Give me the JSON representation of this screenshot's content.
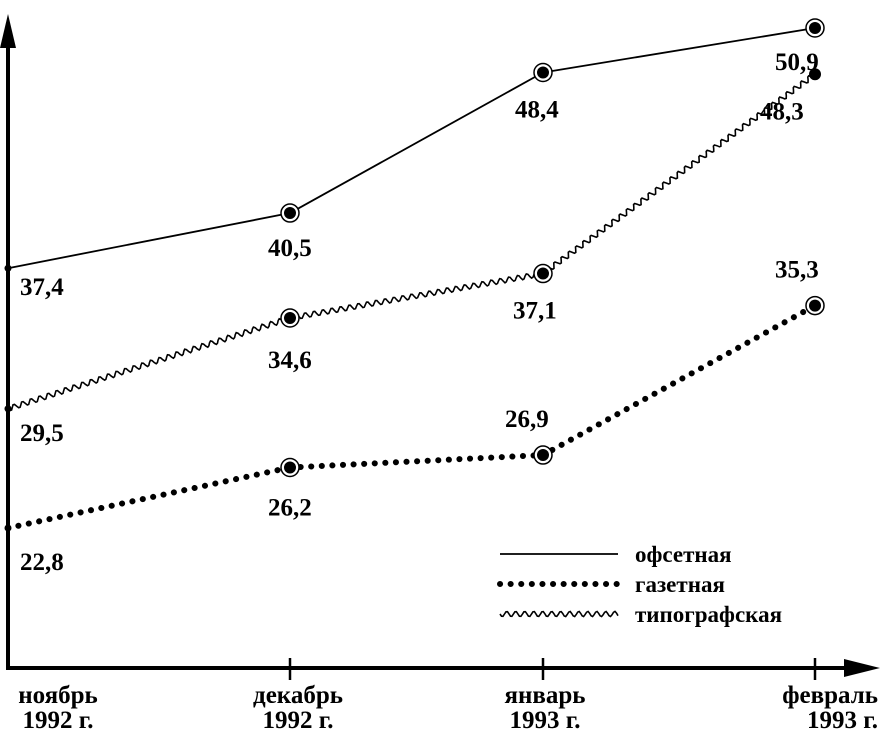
{
  "chart_data": {
    "type": "line",
    "title": "",
    "xlabel": "",
    "ylabel": "",
    "categories": [
      [
        "ноябрь",
        "1992 г."
      ],
      [
        "декабрь",
        "1992 г."
      ],
      [
        "январь",
        "1993 г."
      ],
      [
        "февраль",
        "1993 г."
      ]
    ],
    "series": [
      {
        "name": "офсетная",
        "style": "solid",
        "values": [
          37.4,
          40.5,
          48.4,
          50.9
        ],
        "labels": [
          "37,4",
          "40,5",
          "48,4",
          "50,9"
        ]
      },
      {
        "name": "газетная",
        "style": "dotted",
        "values": [
          22.8,
          26.2,
          26.9,
          35.3
        ],
        "labels": [
          "22,8",
          "26,2",
          "26,9",
          "35,3"
        ]
      },
      {
        "name": "типографская",
        "style": "wavy",
        "values": [
          29.5,
          34.6,
          37.1,
          48.3
        ],
        "labels": [
          "29,5",
          "34,6",
          "37,1",
          "48,3"
        ]
      }
    ],
    "ylim": [
      12,
      53
    ],
    "grid": false,
    "legend_position": "bottom-right",
    "colors": {
      "ink": "#000000",
      "background": "#ffffff"
    }
  }
}
